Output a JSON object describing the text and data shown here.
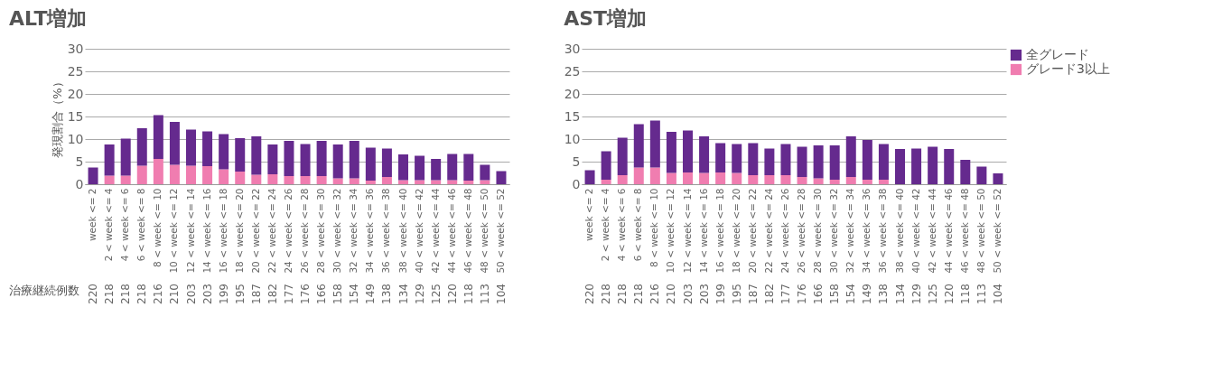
{
  "chart_data": [
    {
      "type": "bar",
      "title": "ALT増加",
      "ylabel": "発現割合（%）",
      "stacked": true,
      "categories": [
        "week <= 2",
        "2 < week <= 4",
        "4 < week <= 6",
        "6 < week <= 8",
        "8 < week <= 10",
        "10 < week <= 12",
        "12 < week <= 14",
        "14 < week <= 16",
        "16 < week <= 18",
        "18 < week <= 20",
        "20 < week <= 22",
        "22 < week <= 24",
        "24 < week <= 26",
        "26 < week <= 28",
        "28 < week <= 30",
        "30 < week <= 32",
        "32 < week <= 34",
        "34 < week <= 36",
        "36 < week <= 38",
        "38 < week <= 40",
        "40 < week <= 42",
        "42 < week <= 44",
        "44 < week <= 46",
        "46 < week <= 48",
        "48 < week <= 50",
        "50 < week <= 52"
      ],
      "series": [
        {
          "name": "グレード3以上",
          "color": "#f07db0",
          "values": [
            0,
            1.9,
            1.9,
            4.1,
            5.6,
            4.3,
            4.1,
            4.0,
            3.3,
            2.8,
            2.1,
            2.2,
            1.8,
            1.8,
            1.8,
            1.3,
            1.3,
            0.8,
            1.6,
            0.9,
            0.9,
            0.9,
            0.9,
            0.8,
            0.9,
            0
          ]
        },
        {
          "name": "全グレード",
          "color": "#652a8e",
          "values": [
            3.7,
            6.9,
            8.2,
            8.3,
            9.7,
            9.5,
            8.0,
            7.7,
            7.8,
            7.4,
            8.5,
            6.6,
            7.8,
            7.1,
            7.8,
            7.5,
            8.3,
            7.3,
            6.3,
            5.7,
            5.4,
            4.7,
            5.8,
            5.9,
            3.4,
            2.9
          ]
        }
      ],
      "ylim": [
        0,
        30
      ],
      "yticks": [
        0,
        5,
        10,
        15,
        20,
        25,
        30
      ],
      "grid": "y",
      "legend": "top right",
      "annotations": [
        "治療継続例数",
        "220",
        "218",
        "218",
        "218",
        "216",
        "210",
        "203",
        "203",
        "199",
        "195",
        "187",
        "182",
        "177",
        "176",
        "166",
        "158",
        "154",
        "149",
        "138",
        "134",
        "129",
        "125",
        "120",
        "118",
        "113",
        "104"
      ]
    },
    {
      "type": "bar",
      "title": "AST増加",
      "stacked": true,
      "categories": [
        "week <= 2",
        "2 < week <= 4",
        "4 < week <= 6",
        "6 < week <= 8",
        "8 < week <= 10",
        "10 < week <= 12",
        "12 < week <= 14",
        "14 < week <= 16",
        "16 < week <= 18",
        "18 < week <= 20",
        "20 < week <= 22",
        "22 < week <= 24",
        "24 < week <= 26",
        "26 < week <= 28",
        "28 < week <= 30",
        "30 < week <= 32",
        "32 < week <= 34",
        "34 < week <= 36",
        "36 < week <= 38",
        "38 < week <= 40",
        "40 < week <= 42",
        "42 < week <= 44",
        "44 < week <= 46",
        "46 < week <= 48",
        "48 < week <= 50",
        "50 < week <= 52"
      ],
      "series": [
        {
          "name": "グレード3以上",
          "color": "#f07db0",
          "values": [
            0,
            1.0,
            2.0,
            3.7,
            3.7,
            2.5,
            2.6,
            2.5,
            2.6,
            2.5,
            2.0,
            2.0,
            2.0,
            1.6,
            1.3,
            1.0,
            1.6,
            1.0,
            1.0,
            0,
            0,
            0,
            0,
            0,
            0,
            0
          ]
        },
        {
          "name": "全グレード",
          "color": "#652a8e",
          "values": [
            3.1,
            6.3,
            8.3,
            9.6,
            10.4,
            9.1,
            9.3,
            8.1,
            6.5,
            6.4,
            7.1,
            5.9,
            6.9,
            6.7,
            7.3,
            7.6,
            9.0,
            8.8,
            7.9,
            7.8,
            7.9,
            8.3,
            7.8,
            5.4,
            3.9,
            2.4
          ]
        }
      ],
      "ylim": [
        0,
        30
      ],
      "yticks": [
        0,
        5,
        10,
        15,
        20,
        25,
        30
      ],
      "grid": "y",
      "legend": "top right",
      "annotations": [
        "220",
        "218",
        "218",
        "218",
        "216",
        "210",
        "203",
        "203",
        "199",
        "195",
        "187",
        "182",
        "177",
        "176",
        "166",
        "158",
        "154",
        "149",
        "138",
        "134",
        "129",
        "125",
        "120",
        "118",
        "113",
        "104"
      ]
    }
  ]
}
